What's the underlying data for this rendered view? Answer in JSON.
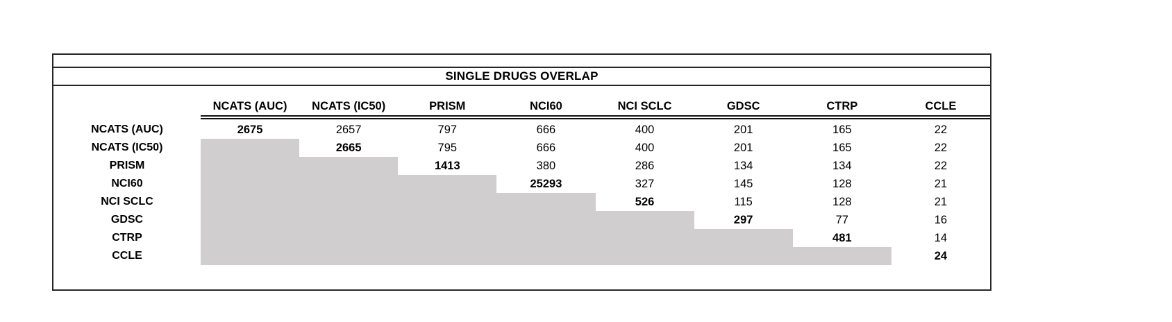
{
  "title": "SINGLE DRUGS OVERLAP",
  "colors": {
    "shaded_cell": "#d0cece",
    "border": "#262626",
    "text": "#000000"
  },
  "chart_data": {
    "type": "table",
    "title": "SINGLE DRUGS OVERLAP",
    "columns": [
      "NCATS (AUC)",
      "NCATS (IC50)",
      "PRISM",
      "NCI60",
      "NCI SCLC",
      "GDSC",
      "CTRP",
      "CCLE"
    ],
    "row_labels": [
      "NCATS (AUC)",
      "NCATS (IC50)",
      "PRISM",
      "NCI60",
      "NCI SCLC",
      "GDSC",
      "CTRP",
      "CCLE"
    ],
    "matrix": [
      [
        2675,
        2657,
        797,
        666,
        400,
        201,
        165,
        22
      ],
      [
        null,
        2665,
        795,
        666,
        400,
        201,
        165,
        22
      ],
      [
        null,
        null,
        1413,
        380,
        286,
        134,
        134,
        22
      ],
      [
        null,
        null,
        null,
        25293,
        327,
        145,
        128,
        21
      ],
      [
        null,
        null,
        null,
        null,
        526,
        115,
        128,
        21
      ],
      [
        null,
        null,
        null,
        null,
        null,
        297,
        77,
        16
      ],
      [
        null,
        null,
        null,
        null,
        null,
        null,
        481,
        14
      ],
      [
        null,
        null,
        null,
        null,
        null,
        null,
        null,
        24
      ]
    ],
    "layout_hints": {
      "diagonal_bold": true,
      "lower_triangle_shaded": true,
      "header_double_rule": true,
      "gridlines": false
    }
  }
}
